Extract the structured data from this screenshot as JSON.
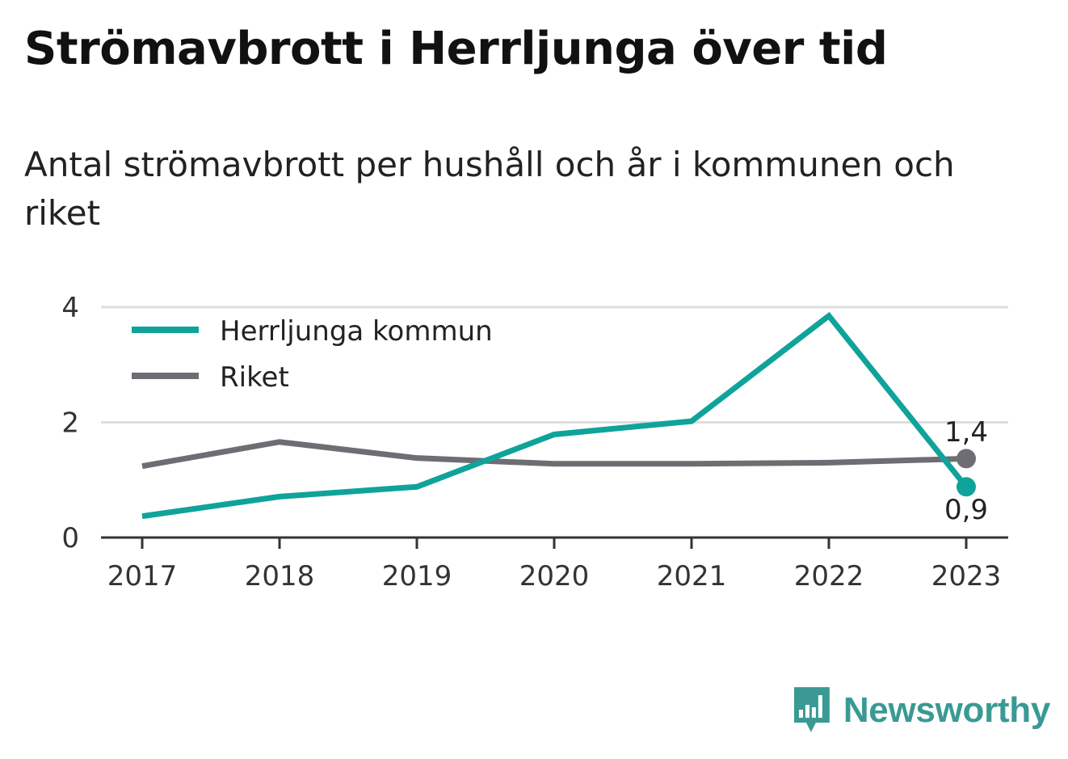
{
  "header": {
    "title": "Strömavbrott i Herrljunga över tid",
    "subtitle": "Antal strömavbrott per hushåll och år i kommunen och riket"
  },
  "colors": {
    "herrljunga": "#0fa39a",
    "riket": "#6e6d73",
    "grid": "#dddddd",
    "axis": "#333333",
    "brand": "#3a9a93"
  },
  "chart_data": {
    "type": "line",
    "title": "Strömavbrott i Herrljunga över tid",
    "subtitle": "Antal strömavbrott per hushåll och år i kommunen och riket",
    "xlabel": "",
    "ylabel": "",
    "x": [
      "2017",
      "2018",
      "2019",
      "2020",
      "2021",
      "2022",
      "2023"
    ],
    "ylim": [
      0,
      4
    ],
    "yticks": [
      "0",
      "2",
      "4"
    ],
    "grid": true,
    "legend_position": "top-left",
    "series": [
      {
        "name": "Herrljunga kommun",
        "color": "#0fa39a",
        "values": [
          0.37,
          0.71,
          0.88,
          1.79,
          2.02,
          3.85,
          0.88
        ],
        "end_label": "0,9"
      },
      {
        "name": "Riket",
        "color": "#6e6d73",
        "values": [
          1.24,
          1.66,
          1.38,
          1.28,
          1.28,
          1.3,
          1.37
        ],
        "end_label": "1,4"
      }
    ]
  },
  "brand": {
    "name": "Newsworthy",
    "icon": "newsworthy-logo-icon"
  }
}
